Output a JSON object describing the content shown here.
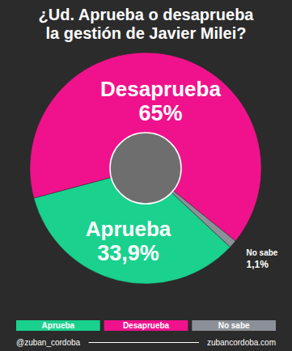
{
  "chart_data": {
    "type": "pie",
    "title": "¿Ud. Aprueba o desaprueba la gestión de Javier Milei?",
    "categories": [
      "Aprueba",
      "Desaprueba",
      "No sabe"
    ],
    "values": [
      33.9,
      65,
      1.1
    ],
    "value_labels": [
      "33,9%",
      "65%",
      "1,1%"
    ],
    "colors": [
      "#1ad18e",
      "#f0128c",
      "#8c9199"
    ],
    "data_labels": true,
    "legend": "bottom",
    "annotations": [
      "@zuban_cordoba",
      "zubancordoba.com"
    ]
  }
}
